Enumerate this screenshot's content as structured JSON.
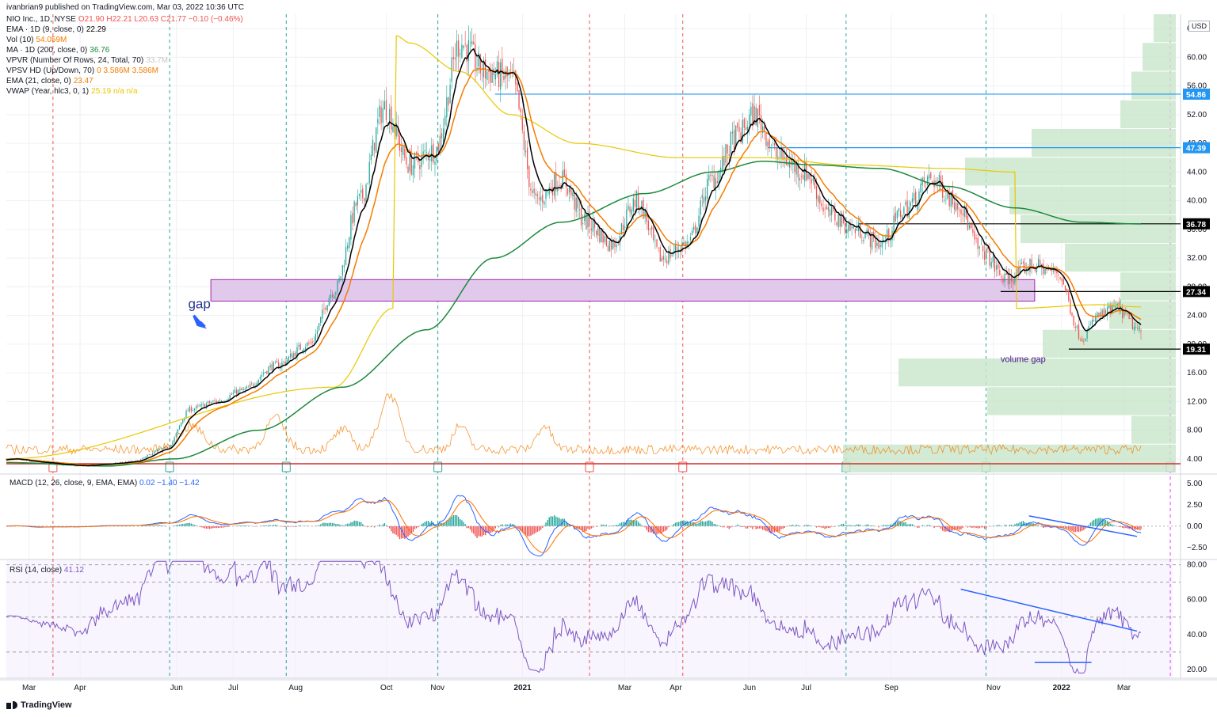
{
  "header": "ivanbrian9 published on TradingView.com, Mar 03, 2022 10:36 UTC",
  "legend": [
    {
      "name": "NIO Inc., 1D, NYSE",
      "values": "O21.90 H22.21 L20.63 C21.77 −0.10 (−0.46%)",
      "color": "#ef5350"
    },
    {
      "name": "EMA · 1D (9, close, 0)",
      "values": "22.29",
      "color": "#000000"
    },
    {
      "name": "Vol (10)",
      "values": "54.059M",
      "color": "#f57c00"
    },
    {
      "name": "MA · 1D (200, close, 0)",
      "values": "36.76",
      "color": "#1b8a3a"
    },
    {
      "name": "VPVR (Number Of Rows, 24, Total, 70)",
      "values": "33.7M",
      "color": "#c8c8c8"
    },
    {
      "name": "VPSV HD (Up/Down, 70)",
      "values": "0  3.586M  3.586M",
      "color": "#f57c00"
    },
    {
      "name": "EMA (21, close, 0)",
      "values": "23.47",
      "color": "#f57c00"
    },
    {
      "name": "VWAP (Year, hlc3, 0, 1)",
      "values": "25.19  n/a  n/a",
      "color": "#e8c800"
    }
  ],
  "currency": "USD",
  "logo": "TradingView",
  "annotations": {
    "gap": "gap",
    "volume_gap": "volume gap"
  },
  "colors": {
    "up": "#26a69a",
    "down": "#ef5350",
    "ema9": "#000000",
    "ema21": "#f57c00",
    "ma200": "#1b8a3a",
    "vwap": "#e8c800",
    "vol": "#f57c00",
    "zone": "#e1c9ec",
    "macd": "#2962ff",
    "signal": "#ff6d00",
    "rsi": "#7e57c2",
    "trend": "#2962ff",
    "vpvr": "#c8e6c9"
  },
  "chart_data": [
    {
      "type": "candlestick",
      "title": "NIO Inc., 1D, NYSE",
      "x_ticks": [
        "Mar",
        "Apr",
        "Jun",
        "Jul",
        "Aug",
        "Oct",
        "Nov",
        "2021",
        "Mar",
        "Apr",
        "Jun",
        "Jul",
        "Sep",
        "Nov",
        "2022",
        "Mar"
      ],
      "ylim": [
        2,
        66
      ],
      "y_ticks": [
        4,
        8,
        12,
        16,
        20,
        24,
        28,
        32,
        36,
        40,
        44,
        48,
        52,
        56,
        60,
        64
      ],
      "price_levels": [
        {
          "value": 54.86,
          "label": "54.86",
          "color": "#2196f3"
        },
        {
          "value": 47.39,
          "label": "47.39",
          "color": "#2196f3"
        },
        {
          "value": 36.78,
          "label": "36.78",
          "color": "#000000"
        },
        {
          "value": 27.34,
          "label": "27.34",
          "color": "#000000"
        },
        {
          "value": 19.31,
          "label": "19.31",
          "color": "#000000"
        }
      ],
      "series": [
        {
          "name": "EMA (9)",
          "values_key": "ema9"
        },
        {
          "name": "EMA (21)",
          "values_key": "ema21"
        },
        {
          "name": "MA (200)",
          "values_key": "ma200"
        },
        {
          "name": "VWAP",
          "values_key": "vwap"
        }
      ],
      "close_keypoints": [
        [
          0,
          4.0
        ],
        [
          25,
          3.4
        ],
        [
          45,
          3.0
        ],
        [
          60,
          3.3
        ],
        [
          75,
          3.6
        ],
        [
          95,
          5.5
        ],
        [
          110,
          11.0
        ],
        [
          125,
          12.0
        ],
        [
          140,
          13.5
        ],
        [
          160,
          17.0
        ],
        [
          180,
          20.0
        ],
        [
          195,
          27.5
        ],
        [
          210,
          40.0
        ],
        [
          225,
          53.0
        ],
        [
          240,
          45.0
        ],
        [
          255,
          47.0
        ],
        [
          270,
          62.0
        ],
        [
          285,
          58.0
        ],
        [
          300,
          57.0
        ],
        [
          315,
          40.0
        ],
        [
          330,
          43.0
        ],
        [
          345,
          37.0
        ],
        [
          360,
          34.0
        ],
        [
          375,
          40.0
        ],
        [
          390,
          32.0
        ],
        [
          405,
          34.0
        ],
        [
          420,
          43.0
        ],
        [
          435,
          49.0
        ],
        [
          445,
          52.0
        ],
        [
          460,
          46.0
        ],
        [
          475,
          44.0
        ],
        [
          490,
          38.0
        ],
        [
          505,
          36.0
        ],
        [
          520,
          34.0
        ],
        [
          535,
          39.0
        ],
        [
          550,
          43.0
        ],
        [
          565,
          40.0
        ],
        [
          580,
          33.0
        ],
        [
          595,
          29.0
        ],
        [
          610,
          31.0
        ],
        [
          625,
          30.0
        ],
        [
          640,
          21.0
        ],
        [
          650,
          24.0
        ],
        [
          660,
          25.0
        ],
        [
          675,
          21.77
        ]
      ],
      "ma200_keypoints": [
        [
          0,
          3.5
        ],
        [
          60,
          3.0
        ],
        [
          100,
          4.0
        ],
        [
          150,
          8.0
        ],
        [
          200,
          14.0
        ],
        [
          250,
          22.0
        ],
        [
          290,
          32.0
        ],
        [
          330,
          37.0
        ],
        [
          380,
          41.0
        ],
        [
          420,
          44.0
        ],
        [
          450,
          45.5
        ],
        [
          480,
          45.0
        ],
        [
          520,
          44.5
        ],
        [
          560,
          42.0
        ],
        [
          600,
          39.0
        ],
        [
          640,
          37.0
        ],
        [
          675,
          36.76
        ]
      ],
      "vwap_keypoints": [
        [
          0,
          4.0
        ],
        [
          195,
          14.0
        ],
        [
          230,
          25.0
        ],
        [
          232,
          63.0
        ],
        [
          240,
          62.0
        ],
        [
          270,
          58.0
        ],
        [
          300,
          52.0
        ],
        [
          340,
          48.0
        ],
        [
          400,
          46.0
        ],
        [
          450,
          46.0
        ],
        [
          500,
          45.0
        ],
        [
          560,
          44.5
        ],
        [
          600,
          44.0
        ],
        [
          601,
          25.0
        ],
        [
          650,
          25.5
        ],
        [
          675,
          25.19
        ]
      ],
      "volume_gap_zone": [
        26.0,
        29.0
      ]
    },
    {
      "type": "line",
      "title": "MACD (12, 26, close, 9, EMA, EMA)",
      "values_text": "0.02  −1.40  −1.42",
      "ylim": [
        -3.9,
        6.0
      ],
      "y_ticks": [
        5.0,
        2.5,
        0.0,
        -2.5
      ],
      "y_labels": [
        "5.00",
        "2.50",
        "0.00",
        "−2.50"
      ]
    },
    {
      "type": "line",
      "title": "RSI (14, close)",
      "values_text": "41.12",
      "ylim": [
        15,
        83
      ],
      "y_ticks": [
        80,
        60,
        40,
        20
      ],
      "y_labels": [
        "80.00",
        "60.00",
        "40.00",
        "20.00"
      ],
      "bands": [
        30,
        70
      ]
    }
  ]
}
